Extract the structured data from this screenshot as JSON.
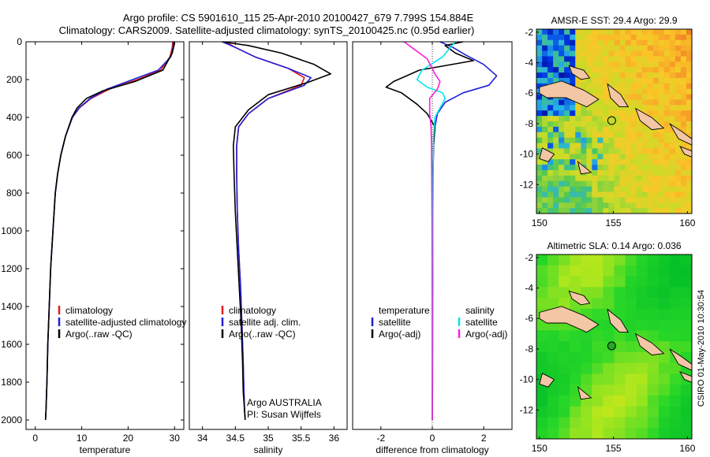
{
  "title": {
    "line1": "Argo profile: CS 5901610_115 25-Apr-2010 20100427_679 7.799S 154.884E",
    "line2": "Climatology: CARS2009. Satellite-adjusted climatology: synTS_20100425.nc (0.95d earlier)"
  },
  "footer": {
    "credit": "CSIRO 01-May-2010 10:30:54"
  },
  "colors": {
    "climatology": "#e31a1c",
    "satellite": "#1f1fd6",
    "argo": "#000000",
    "salinity_satellite": "#00e5ee",
    "salinity_argo": "#ff1fd6"
  },
  "chart_data": [
    {
      "type": "line",
      "panel": "temperature",
      "xlabel": "temperature",
      "ylabel": "",
      "xlim": [
        -2,
        32
      ],
      "ylim": [
        2050,
        0
      ],
      "xticks": [
        0,
        10,
        20,
        30
      ],
      "yticks": [
        0,
        200,
        400,
        600,
        800,
        1000,
        1200,
        1400,
        1600,
        1800,
        2000
      ],
      "legend": [
        "climatology",
        "satellite-adjusted climatology",
        "Argo(..raw -QC)"
      ],
      "series": [
        {
          "name": "climatology",
          "color_key": "climatology",
          "x": [
            29.6,
            29.5,
            29.0,
            27.0,
            22.0,
            16.0,
            12.0,
            9.5,
            8.0,
            6.5,
            5.5,
            4.8,
            4.3,
            3.8,
            3.3,
            3.0,
            2.7,
            2.5,
            2.3,
            2.2
          ],
          "y": [
            0,
            30,
            80,
            150,
            200,
            250,
            300,
            350,
            400,
            500,
            600,
            700,
            800,
            1000,
            1200,
            1400,
            1600,
            1800,
            1950,
            2000
          ]
        },
        {
          "name": "satellite-adjusted climatology",
          "color_key": "satellite",
          "x": [
            29.8,
            29.7,
            29.2,
            26.5,
            21.0,
            15.5,
            11.8,
            9.4,
            8.0,
            6.5,
            5.5,
            4.8,
            4.3,
            3.8,
            3.3,
            3.0,
            2.7,
            2.5,
            2.3,
            2.2
          ],
          "y": [
            0,
            30,
            80,
            150,
            200,
            250,
            300,
            350,
            400,
            500,
            600,
            700,
            800,
            1000,
            1200,
            1400,
            1600,
            1800,
            1950,
            2000
          ]
        },
        {
          "name": "Argo(..raw -QC)",
          "color_key": "argo",
          "x": [
            30.0,
            29.9,
            29.5,
            27.5,
            21.5,
            14.5,
            11.0,
            9.0,
            7.9,
            6.5,
            5.5,
            4.8,
            4.3,
            3.8,
            3.3,
            3.0,
            2.7,
            2.5,
            2.3,
            2.2
          ],
          "y": [
            0,
            20,
            60,
            150,
            210,
            260,
            300,
            350,
            400,
            500,
            600,
            700,
            800,
            1000,
            1200,
            1400,
            1600,
            1800,
            1950,
            2000
          ]
        }
      ]
    },
    {
      "type": "line",
      "panel": "salinity",
      "xlabel": "salinity",
      "ylabel": "",
      "xlim": [
        33.8,
        36.2
      ],
      "ylim": [
        2050,
        0
      ],
      "xticks": [
        34,
        34.5,
        35,
        35.5,
        36
      ],
      "yticks": [],
      "legend": [
        "climatology",
        "satellite adj. clim.",
        "Argo(..raw -QC)"
      ],
      "annotation": [
        "Argo AUSTRALIA",
        "PI: Susan Wijffels"
      ],
      "series": [
        {
          "name": "climatology",
          "color_key": "climatology",
          "x": [
            34.35,
            34.5,
            34.8,
            35.3,
            35.55,
            35.5,
            35.0,
            34.7,
            34.55,
            34.52,
            34.52,
            34.53,
            34.55,
            34.58,
            34.6,
            34.62,
            34.63,
            34.64,
            34.65
          ],
          "y": [
            0,
            30,
            80,
            140,
            190,
            230,
            300,
            380,
            450,
            550,
            700,
            900,
            1100,
            1300,
            1500,
            1700,
            1850,
            1950,
            2000
          ]
        },
        {
          "name": "satellite adj. clim.",
          "color_key": "satellite",
          "x": [
            34.3,
            34.5,
            34.8,
            35.3,
            35.65,
            35.55,
            35.0,
            34.7,
            34.55,
            34.52,
            34.52,
            34.53,
            34.55,
            34.58,
            34.6,
            34.62,
            34.63,
            34.64,
            34.65
          ],
          "y": [
            0,
            30,
            80,
            140,
            190,
            230,
            300,
            380,
            450,
            550,
            700,
            900,
            1100,
            1300,
            1500,
            1700,
            1850,
            1950,
            2000
          ]
        },
        {
          "name": "Argo(..raw -QC)",
          "color_key": "argo",
          "x": [
            34.3,
            34.7,
            35.2,
            35.7,
            35.95,
            35.6,
            35.0,
            34.7,
            34.5,
            34.47,
            34.48,
            34.5,
            34.53,
            34.56,
            34.59,
            34.61,
            34.62,
            34.64,
            34.65
          ],
          "y": [
            0,
            20,
            60,
            120,
            170,
            215,
            280,
            360,
            450,
            550,
            700,
            900,
            1100,
            1300,
            1500,
            1700,
            1850,
            1950,
            2000
          ]
        }
      ]
    },
    {
      "type": "line",
      "panel": "difference",
      "xlabel": "difference from climatology",
      "ylabel": "",
      "xlim": [
        -3.1,
        3.1
      ],
      "ylim": [
        2050,
        0
      ],
      "xticks": [
        -2,
        0,
        2
      ],
      "yticks": [],
      "legend_columns": [
        {
          "header": "temperature",
          "items": [
            "satellite",
            "Argo(-adj)"
          ]
        },
        {
          "header": "salinity",
          "items": [
            "satellite",
            "Argo(-adj)"
          ]
        }
      ],
      "series": [
        {
          "name": "temperature satellite",
          "color_key": "satellite",
          "x": [
            0.3,
            0.8,
            1.3,
            2.0,
            2.5,
            2.2,
            1.2,
            0.5,
            0.2,
            0.1,
            0.05,
            0.03,
            0.02,
            0.02,
            0.01,
            0.01,
            0.0
          ],
          "y": [
            0,
            30,
            70,
            120,
            180,
            230,
            270,
            320,
            380,
            450,
            550,
            700,
            900,
            1200,
            1500,
            1800,
            2000
          ]
        },
        {
          "name": "temperature Argo(-adj)",
          "color_key": "argo",
          "x": [
            1.2,
            0.5,
            0.9,
            1.6,
            -0.5,
            -1.5,
            -1.8,
            -1.2,
            -0.6,
            -0.2,
            0.1,
            0.05,
            0.02,
            0.02,
            0.01,
            0.01,
            0.0
          ],
          "y": [
            0,
            20,
            60,
            100,
            150,
            210,
            240,
            270,
            330,
            380,
            450,
            550,
            700,
            900,
            1200,
            1600,
            2000
          ]
        },
        {
          "name": "salinity satellite",
          "color_key": "salinity_satellite",
          "x": [
            0.9,
            0.7,
            0.4,
            -0.4,
            -0.6,
            -0.2,
            0.4,
            0.5,
            0.3,
            0.1,
            0.05,
            0.03,
            0.02,
            0.01,
            0.0
          ],
          "y": [
            0,
            30,
            80,
            150,
            200,
            240,
            270,
            300,
            350,
            400,
            500,
            700,
            1000,
            1500,
            2000
          ]
        },
        {
          "name": "salinity Argo(-adj)",
          "color_key": "salinity_argo",
          "x": [
            -1.1,
            -0.8,
            -0.2,
            0.1,
            0.3,
            0.2,
            -0.1,
            -0.1,
            -0.05,
            -0.03,
            -0.02,
            -0.01,
            0.0
          ],
          "y": [
            0,
            30,
            90,
            170,
            210,
            250,
            300,
            380,
            450,
            550,
            700,
            1000,
            2000
          ]
        }
      ]
    },
    {
      "type": "heatmap",
      "panel": "sst_map",
      "title": "AMSR-E SST: 29.4 Argo: 29.9",
      "xlim": [
        149.8,
        160.3
      ],
      "ylim": [
        -13.9,
        -1.8
      ],
      "xticks": [
        150,
        155,
        160
      ],
      "yticks": [
        -2,
        -4,
        -6,
        -8,
        -10,
        -12
      ],
      "marker": {
        "lon": 154.884,
        "lat": -7.799
      }
    },
    {
      "type": "heatmap",
      "panel": "sla_map",
      "title": "Altimetric SLA: 0.14 Argo: 0.036",
      "xlim": [
        149.8,
        160.3
      ],
      "ylim": [
        -13.9,
        -1.8
      ],
      "xticks": [
        150,
        155,
        160
      ],
      "yticks": [
        -2,
        -4,
        -6,
        -8,
        -10,
        -12
      ],
      "marker": {
        "lon": 154.884,
        "lat": -7.799
      }
    }
  ]
}
